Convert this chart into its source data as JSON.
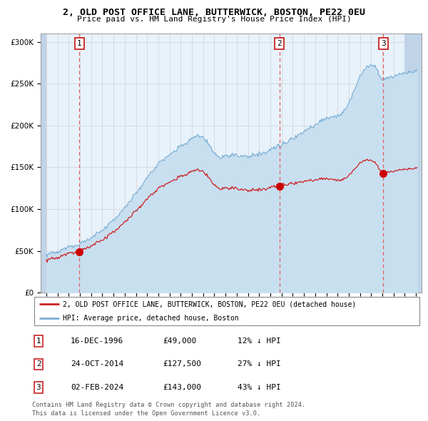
{
  "title": "2, OLD POST OFFICE LANE, BUTTERWICK, BOSTON, PE22 0EU",
  "subtitle": "Price paid vs. HM Land Registry's House Price Index (HPI)",
  "hpi_label": "HPI: Average price, detached house, Boston",
  "property_label": "2, OLD POST OFFICE LANE, BUTTERWICK, BOSTON, PE22 0EU (detached house)",
  "hpi_color": "#7aaed4",
  "hpi_fill_color": "#c8dff0",
  "property_color": "#cc2222",
  "bg_color": "#e8f2fb",
  "hatch_color": "#c0d4e8",
  "grid_color": "#cccccc",
  "sale_line_color": "#e06060",
  "sale_point_color": "#cc0000",
  "sales": [
    {
      "num": 1,
      "year": 1996.96,
      "price": 49000,
      "label": "16-DEC-1996",
      "hpi_pct": "12% ↓ HPI"
    },
    {
      "num": 2,
      "year": 2014.81,
      "price": 127500,
      "label": "24-OCT-2014",
      "hpi_pct": "27% ↓ HPI"
    },
    {
      "num": 3,
      "year": 2024.09,
      "price": 143000,
      "label": "02-FEB-2024",
      "hpi_pct": "43% ↓ HPI"
    }
  ],
  "ylim": [
    0,
    310000
  ],
  "xlim_start": 1993.5,
  "xlim_end": 2027.5,
  "hatch_left_end": 1994.0,
  "hatch_right_start": 2026.0,
  "yticks": [
    0,
    50000,
    100000,
    150000,
    200000,
    250000,
    300000
  ],
  "xtick_start": 1994,
  "xtick_end": 2027,
  "footnote1": "Contains HM Land Registry data © Crown copyright and database right 2024.",
  "footnote2": "This data is licensed under the Open Government Licence v3.0."
}
